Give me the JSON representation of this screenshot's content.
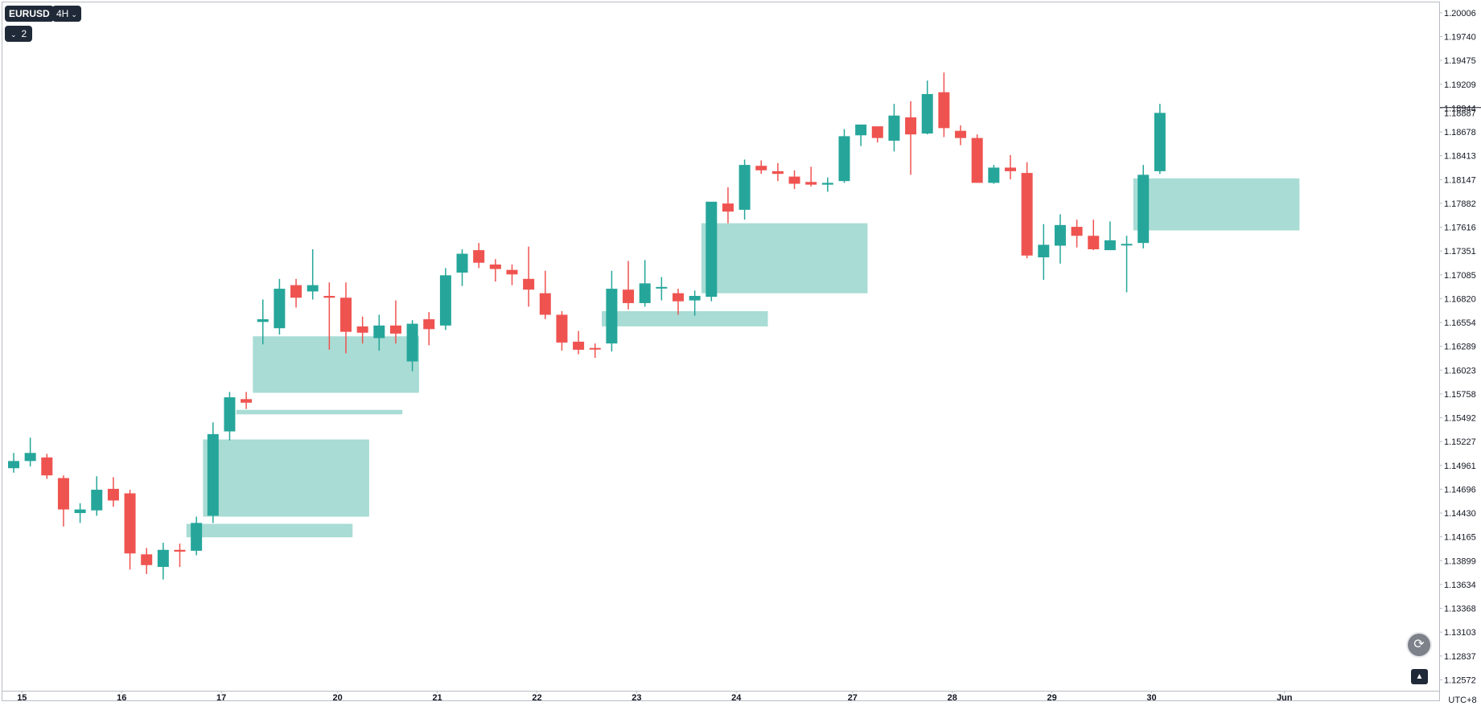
{
  "toolbar": {
    "symbol": "EURUSD",
    "interval": "4H",
    "indicator_count": "2"
  },
  "timezone": "UTC+8",
  "colors": {
    "up": "#26a69a",
    "down": "#ef5350",
    "zone": "#a8dcd4",
    "axis_text": "#131722"
  },
  "chart_data": {
    "type": "candlestick",
    "price_axis": {
      "ticks": [
        "1.20006",
        "1.19740",
        "1.19475",
        "1.19209",
        "1.18944",
        "1.18678",
        "1.18413",
        "1.18147",
        "1.17882",
        "1.17616",
        "1.17351",
        "1.17085",
        "1.16820",
        "1.16554",
        "1.16289",
        "1.16023",
        "1.15758",
        "1.15492",
        "1.15227",
        "1.14961",
        "1.14696",
        "1.14430",
        "1.14165",
        "1.13899",
        "1.13634",
        "1.13368",
        "1.13103",
        "1.12837",
        "1.12572"
      ],
      "current_price": "1.18887",
      "range": [
        1.1245,
        1.2013
      ]
    },
    "time_axis": {
      "labels": [
        {
          "label": "15",
          "index": 0.5
        },
        {
          "label": "16",
          "index": 6.5
        },
        {
          "label": "17",
          "index": 12.5
        },
        {
          "label": "20",
          "index": 19.5
        },
        {
          "label": "21",
          "index": 25.5
        },
        {
          "label": "22",
          "index": 31.5
        },
        {
          "label": "23",
          "index": 37.5
        },
        {
          "label": "24",
          "index": 43.5
        },
        {
          "label": "27",
          "index": 50.5
        },
        {
          "label": "28",
          "index": 56.5
        },
        {
          "label": "29",
          "index": 62.5
        },
        {
          "label": "30",
          "index": 68.5
        },
        {
          "label": "Jun",
          "index": 76.5
        }
      ]
    },
    "candles": [
      [
        1.1493,
        1.151,
        1.1488,
        1.1501
      ],
      [
        1.1501,
        1.1527,
        1.1495,
        1.151
      ],
      [
        1.1505,
        1.1509,
        1.1481,
        1.1485
      ],
      [
        1.1482,
        1.1485,
        1.1428,
        1.1447
      ],
      [
        1.1443,
        1.1454,
        1.1432,
        1.1447
      ],
      [
        1.1446,
        1.1484,
        1.144,
        1.1469
      ],
      [
        1.147,
        1.1483,
        1.145,
        1.1457
      ],
      [
        1.1465,
        1.1469,
        1.138,
        1.1398
      ],
      [
        1.1397,
        1.1404,
        1.1375,
        1.1385
      ],
      [
        1.1383,
        1.141,
        1.1369,
        1.1402
      ],
      [
        1.1402,
        1.1409,
        1.1383,
        1.14
      ],
      [
        1.1401,
        1.1439,
        1.1396,
        1.1432
      ],
      [
        1.144,
        1.1544,
        1.1432,
        1.1531
      ],
      [
        1.1534,
        1.1578,
        1.1524,
        1.1572
      ],
      [
        1.157,
        1.1578,
        1.1559,
        1.1566
      ],
      [
        1.1656,
        1.1681,
        1.1631,
        1.1659
      ],
      [
        1.1649,
        1.1704,
        1.1642,
        1.1693
      ],
      [
        1.1697,
        1.1704,
        1.1672,
        1.1683
      ],
      [
        1.169,
        1.1737,
        1.1681,
        1.1697
      ],
      [
        1.1685,
        1.17,
        1.1625,
        1.1683
      ],
      [
        1.1683,
        1.17,
        1.1621,
        1.1645
      ],
      [
        1.1651,
        1.1662,
        1.1632,
        1.1644
      ],
      [
        1.1638,
        1.1664,
        1.1624,
        1.1652
      ],
      [
        1.1652,
        1.168,
        1.1632,
        1.1643
      ],
      [
        1.1612,
        1.1658,
        1.1601,
        1.1654
      ],
      [
        1.1659,
        1.1667,
        1.163,
        1.1648
      ],
      [
        1.1652,
        1.1716,
        1.1647,
        1.1708
      ],
      [
        1.1711,
        1.1737,
        1.1696,
        1.1732
      ],
      [
        1.1736,
        1.1744,
        1.1716,
        1.1722
      ],
      [
        1.172,
        1.1726,
        1.1701,
        1.1715
      ],
      [
        1.1714,
        1.172,
        1.1697,
        1.1709
      ],
      [
        1.1704,
        1.174,
        1.1673,
        1.1692
      ],
      [
        1.1688,
        1.1713,
        1.1659,
        1.1664
      ],
      [
        1.1664,
        1.1668,
        1.1624,
        1.1633
      ],
      [
        1.1634,
        1.1646,
        1.162,
        1.1625
      ],
      [
        1.1627,
        1.1632,
        1.1616,
        1.1626
      ],
      [
        1.1632,
        1.1713,
        1.1623,
        1.1693
      ],
      [
        1.1692,
        1.1724,
        1.167,
        1.1677
      ],
      [
        1.1677,
        1.1725,
        1.1673,
        1.1699
      ],
      [
        1.1694,
        1.1706,
        1.168,
        1.1695
      ],
      [
        1.1688,
        1.1693,
        1.1664,
        1.1679
      ],
      [
        1.168,
        1.1691,
        1.1663,
        1.1685
      ],
      [
        1.1684,
        1.1785,
        1.1679,
        1.179
      ],
      [
        1.1788,
        1.1806,
        1.1766,
        1.1779
      ],
      [
        1.1781,
        1.1837,
        1.177,
        1.1831
      ],
      [
        1.183,
        1.1836,
        1.1821,
        1.1825
      ],
      [
        1.1824,
        1.1833,
        1.1813,
        1.1821
      ],
      [
        1.1818,
        1.1825,
        1.1804,
        1.181
      ],
      [
        1.1812,
        1.1829,
        1.1807,
        1.1809
      ],
      [
        1.1809,
        1.1817,
        1.1801,
        1.1811
      ],
      [
        1.1813,
        1.1871,
        1.1811,
        1.1863
      ],
      [
        1.1864,
        1.1874,
        1.1852,
        1.1876
      ],
      [
        1.1874,
        1.1873,
        1.1856,
        1.1861
      ],
      [
        1.1858,
        1.1899,
        1.1846,
        1.1886
      ],
      [
        1.1884,
        1.1902,
        1.182,
        1.1865
      ],
      [
        1.1866,
        1.1925,
        1.1865,
        1.191
      ],
      [
        1.1912,
        1.1934,
        1.1862,
        1.1872
      ],
      [
        1.1869,
        1.1875,
        1.1853,
        1.1861
      ],
      [
        1.1861,
        1.1865,
        1.1812,
        1.1811
      ],
      [
        1.1811,
        1.1831,
        1.181,
        1.1828
      ],
      [
        1.1828,
        1.1842,
        1.1815,
        1.1824
      ],
      [
        1.1822,
        1.1834,
        1.1727,
        1.173
      ],
      [
        1.1728,
        1.1765,
        1.1703,
        1.1742
      ],
      [
        1.1741,
        1.1776,
        1.1721,
        1.1764
      ],
      [
        1.1762,
        1.177,
        1.1739,
        1.1752
      ],
      [
        1.1752,
        1.177,
        1.1736,
        1.1737
      ],
      [
        1.1736,
        1.1768,
        1.1739,
        1.1747
      ],
      [
        1.1743,
        1.1752,
        1.1689,
        1.1743
      ],
      [
        1.1744,
        1.1831,
        1.1738,
        1.182
      ],
      [
        1.1824,
        1.1899,
        1.1821,
        1.1889
      ]
    ],
    "zones": [
      {
        "from": 10.4,
        "to": 20.4,
        "top": 1.1431,
        "bottom": 1.1416
      },
      {
        "from": 11.4,
        "to": 21.4,
        "top": 1.1525,
        "bottom": 1.1439
      },
      {
        "from": 13.4,
        "to": 23.4,
        "top": 1.1558,
        "bottom": 1.1553
      },
      {
        "from": 14.4,
        "to": 24.4,
        "top": 1.164,
        "bottom": 1.1577
      },
      {
        "from": 35.4,
        "to": 45.4,
        "top": 1.1668,
        "bottom": 1.1651
      },
      {
        "from": 41.4,
        "to": 51.4,
        "top": 1.1766,
        "bottom": 1.1688
      },
      {
        "from": 67.4,
        "to": 77.4,
        "top": 1.1816,
        "bottom": 1.1758
      }
    ]
  }
}
